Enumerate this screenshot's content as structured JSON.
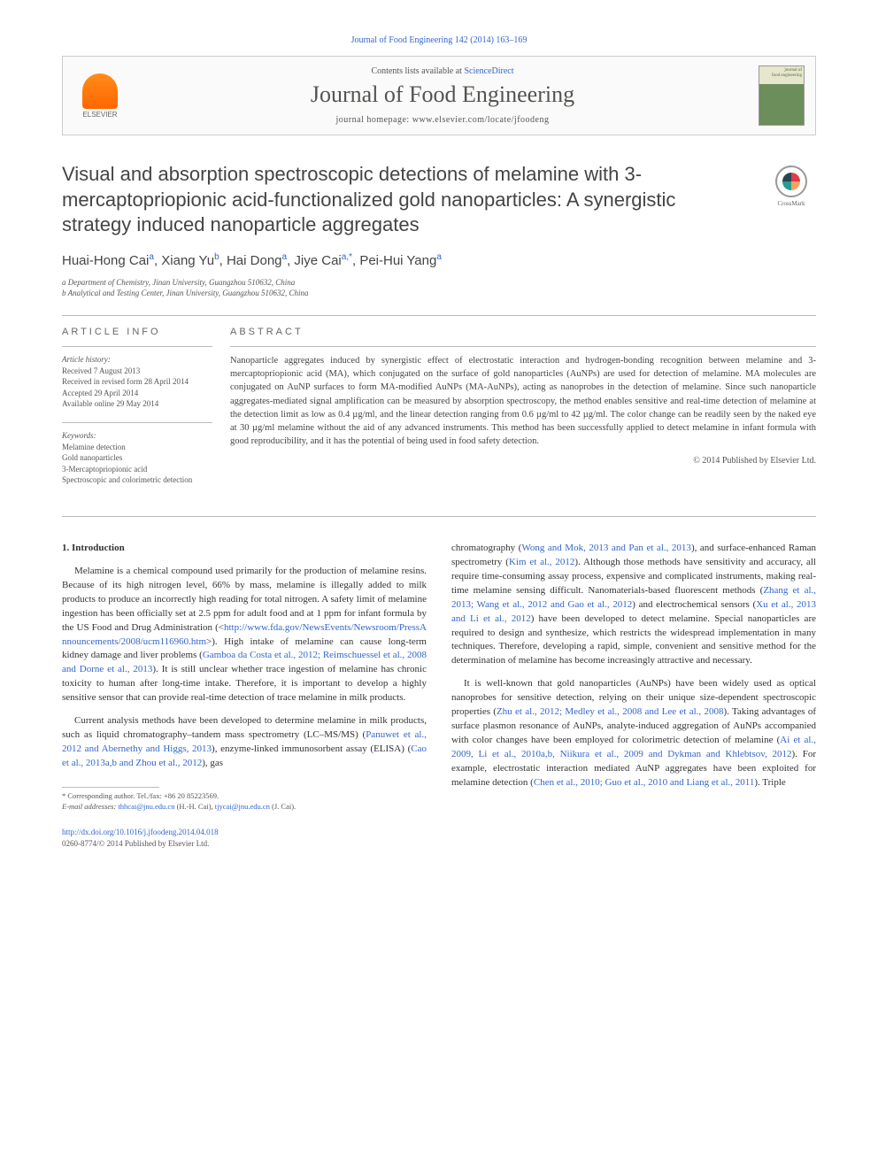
{
  "journal_ref": "Journal of Food Engineering 142 (2014) 163–169",
  "header": {
    "contents_prefix": "Contents lists available at ",
    "contents_link": "ScienceDirect",
    "journal_name": "Journal of Food Engineering",
    "homepage_prefix": "journal homepage: ",
    "homepage_url": "www.elsevier.com/locate/jfoodeng",
    "publisher": "ELSEVIER",
    "cover_label": "journal of\nfood engineering"
  },
  "crossmark_label": "CrossMark",
  "title": "Visual and absorption spectroscopic detections of melamine with 3-mercaptopriopionic acid-functionalized gold nanoparticles: A synergistic strategy induced nanoparticle aggregates",
  "authors": "Huai-Hong Cai",
  "author_sup_a": "a",
  "author2": ", Xiang Yu",
  "author_sup_b": "b",
  "author3": ", Hai Dong",
  "author_sup_a2": "a",
  "author4": ", Jiye Cai",
  "author_sup_star": "a,*",
  "author5": ", Pei-Hui Yang",
  "author_sup_a3": "a",
  "affiliations": {
    "a": "a Department of Chemistry, Jinan University, Guangzhou 510632, China",
    "b": "b Analytical and Testing Center, Jinan University, Guangzhou 510632, China"
  },
  "info": {
    "section_label": "ARTICLE INFO",
    "history_label": "Article history:",
    "received": "Received 7 August 2013",
    "revised": "Received in revised form 28 April 2014",
    "accepted": "Accepted 29 April 2014",
    "online": "Available online 29 May 2014",
    "keywords_label": "Keywords:",
    "k1": "Melamine detection",
    "k2": "Gold nanoparticles",
    "k3": "3-Mercaptopriopionic acid",
    "k4": "Spectroscopic and colorimetric detection"
  },
  "abstract": {
    "label": "ABSTRACT",
    "text": "Nanoparticle aggregates induced by synergistic effect of electrostatic interaction and hydrogen-bonding recognition between melamine and 3-mercaptopriopionic acid (MA), which conjugated on the surface of gold nanoparticles (AuNPs) are used for detection of melamine. MA molecules are conjugated on AuNP surfaces to form MA-modified AuNPs (MA-AuNPs), acting as nanoprobes in the detection of melamine. Since such nanoparticle aggregates-mediated signal amplification can be measured by absorption spectroscopy, the method enables sensitive and real-time detection of melamine at the detection limit as low as 0.4 µg/ml, and the linear detection ranging from 0.6 µg/ml to 42 µg/ml. The color change can be readily seen by the naked eye at 30 µg/ml melamine without the aid of any advanced instruments. This method has been successfully applied to detect melamine in infant formula with good reproducibility, and it has the potential of being used in food safety detection.",
    "copyright": "© 2014 Published by Elsevier Ltd."
  },
  "body": {
    "heading": "1. Introduction",
    "p1a": "Melamine is a chemical compound used primarily for the production of melamine resins. Because of its high nitrogen level, 66% by mass, melamine is illegally added to milk products to produce an incorrectly high reading for total nitrogen. A safety limit of melamine ingestion has been officially set at 2.5 ppm for adult food and at 1 ppm for infant formula by the US Food and Drug Administration (<",
    "p1_url": "http://www.fda.gov/NewsEvents/Newsroom/PressAnnouncements/2008/ucm116960.htm",
    "p1b": ">). High intake of melamine can cause long-term kidney damage and liver problems (",
    "p1_cite": "Gamboa da Costa et al., 2012; Reimschuessel et al., 2008 and Dorne et al., 2013",
    "p1c": "). It is still unclear whether trace ingestion of melamine has chronic toxicity to human after long-time intake. Therefore, it is important to develop a highly sensitive sensor that can provide real-time detection of trace melamine in milk products.",
    "p2a": "Current analysis methods have been developed to determine melamine in milk products, such as liquid chromatography–tandem mass spectrometry (LC–MS/MS) (",
    "p2_cite1": "Panuwet et al., 2012 and Abernethy and Higgs, 2013",
    "p2b": "), enzyme-linked immunosorbent assay (ELISA) (",
    "p2_cite2": "Cao et al., 2013a,b and Zhou et al., 2012",
    "p2c": "), gas",
    "p3a": "chromatography (",
    "p3_cite1": "Wong and Mok, 2013 and Pan et al., 2013",
    "p3b": "), and surface-enhanced Raman spectrometry (",
    "p3_cite2": "Kim et al., 2012",
    "p3c": "). Although those methods have sensitivity and accuracy, all require time-consuming assay process, expensive and complicated instruments, making real-time melamine sensing difficult. Nanomaterials-based fluorescent methods (",
    "p3_cite3": "Zhang et al., 2013; Wang et al., 2012 and Gao et al., 2012",
    "p3d": ") and electrochemical sensors (",
    "p3_cite4": "Xu et al., 2013 and Li et al., 2012",
    "p3e": ") have been developed to detect melamine. Special nanoparticles are required to design and synthesize, which restricts the widespread implementation in many techniques. Therefore, developing a rapid, simple, convenient and sensitive method for the determination of melamine has become increasingly attractive and necessary.",
    "p4a": "It is well-known that gold nanoparticles (AuNPs) have been widely used as optical nanoprobes for sensitive detection, relying on their unique size-dependent spectroscopic properties (",
    "p4_cite1": "Zhu et al., 2012; Medley et al., 2008 and Lee et al., 2008",
    "p4b": "). Taking advantages of surface plasmon resonance of AuNPs, analyte-induced aggregation of AuNPs accompanied with color changes have been employed for colorimetric detection of melamine (",
    "p4_cite2": "Ai et al., 2009, Li et al., 2010a,b, Niikura et al., 2009 and Dykman and Khlebtsov, 2012",
    "p4c": "). For example, electrostatic interaction mediated AuNP aggregates have been exploited for melamine detection (",
    "p4_cite3": "Chen et al., 2010; Guo et al., 2010 and Liang et al., 2011",
    "p4d": "). Triple"
  },
  "footnotes": {
    "corr": "* Corresponding author. Tel./fax: +86 20 85223569.",
    "email_label": "E-mail addresses: ",
    "email1": "thhcai@jnu.edu.cn",
    "email1_name": " (H.-H. Cai), ",
    "email2": "tjycai@jnu.edu.cn",
    "email2_name": " (J. Cai)."
  },
  "footer": {
    "doi": "http://dx.doi.org/10.1016/j.jfoodeng.2014.04.018",
    "issn": "0260-8774/© 2014 Published by Elsevier Ltd."
  },
  "colors": {
    "link": "#3366cc",
    "text": "#333333",
    "muted": "#555555",
    "border": "#bbbbbb",
    "elsevier_orange": "#ff6600"
  }
}
